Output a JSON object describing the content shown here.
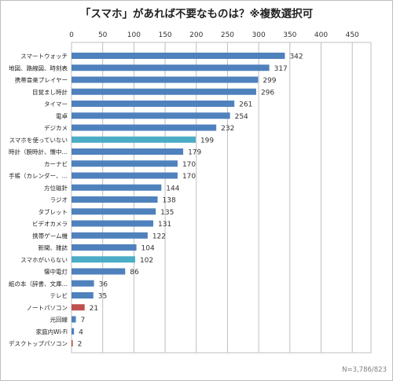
{
  "chart_data": {
    "type": "bar",
    "orientation": "horizontal",
    "title": "「スマホ」があれば不要なものは？※複数選択可",
    "note": "N=3,786/823",
    "xlim": [
      0,
      480
    ],
    "xticks": [
      0,
      50,
      100,
      150,
      200,
      250,
      300,
      350,
      400,
      450
    ],
    "x_axis_position": "top",
    "grid": true,
    "colors": {
      "default": "#4f81bd",
      "highlight_teal": "#4bacc6",
      "highlight_red": "#c0504d"
    },
    "categories": [
      "スマートウォッチ",
      "地図、路線図、時刻表",
      "携帯音楽プレイヤー",
      "目覚まし時計",
      "タイマー",
      "電卓",
      "デジカメ",
      "スマホを使っていない",
      "時計（腕時計、懐中…",
      "カーナビ",
      "手帳（カレンダー、…",
      "方位磁針",
      "ラジオ",
      "タブレット",
      "ビデオカメラ",
      "携帯ゲーム機",
      "新聞、雑誌",
      "スマホがいらない",
      "懐中電灯",
      "紙の本（辞書、文庫…",
      "テレビ",
      "ノートパソコン",
      "光回線",
      "家庭内Wi-Fi",
      "デスクトップパソコン"
    ],
    "values": [
      342,
      317,
      299,
      296,
      261,
      254,
      232,
      199,
      179,
      170,
      170,
      144,
      138,
      135,
      131,
      122,
      104,
      102,
      86,
      36,
      35,
      21,
      7,
      4,
      2
    ],
    "bar_colors": [
      "default",
      "default",
      "default",
      "default",
      "default",
      "default",
      "default",
      "highlight_teal",
      "default",
      "default",
      "default",
      "default",
      "default",
      "default",
      "default",
      "default",
      "default",
      "highlight_teal",
      "default",
      "default",
      "default",
      "highlight_red",
      "default",
      "default",
      "highlight_red"
    ]
  }
}
